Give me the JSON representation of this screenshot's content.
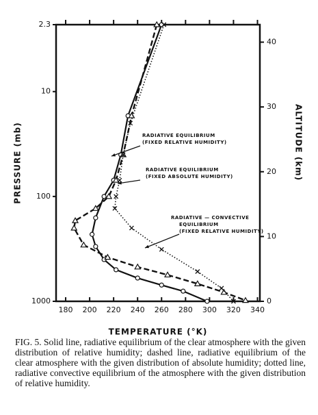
{
  "chart_data": {
    "type": "line",
    "xlabel": "TEMPERATURE (°K)",
    "ylabel": "PRESSURE (mb)",
    "y2label": "ALTITUDE (km)",
    "xlim": [
      172,
      342
    ],
    "xticks": [
      180,
      200,
      220,
      240,
      260,
      280,
      300,
      320,
      340
    ],
    "ylim": [
      1000,
      2.3
    ],
    "yscale": "log",
    "yticks": [
      2.3,
      10,
      100,
      1000
    ],
    "y2lim": [
      0,
      42.7
    ],
    "y2ticks": [
      0,
      10,
      20,
      30,
      40
    ],
    "series": [
      {
        "line": "solid",
        "marker": "circle",
        "color": "#111",
        "x": [
          260,
          232,
          226,
          220,
          212,
          205,
          202,
          205,
          212,
          222,
          240,
          260,
          278,
          298
        ],
        "values": [
          2.3,
          17,
          40,
          70,
          100,
          160,
          230,
          300,
          400,
          500,
          600,
          700,
          800,
          1000
        ]
      },
      {
        "line": "dashed",
        "marker": "triangle",
        "color": "#111",
        "x": [
          256,
          235,
          228,
          222,
          216,
          205,
          188,
          187,
          195,
          215,
          240,
          265,
          290,
          312,
          330
        ],
        "values": [
          2.3,
          17,
          40,
          70,
          100,
          130,
          170,
          200,
          290,
          380,
          470,
          560,
          680,
          820,
          980
        ]
      },
      {
        "line": "dotted",
        "marker": "cross",
        "color": "#111",
        "x": [
          262,
          234,
          228,
          225,
          222,
          221,
          235,
          260,
          290,
          310,
          320
        ],
        "values": [
          2.3,
          20,
          40,
          70,
          100,
          130,
          200,
          320,
          520,
          750,
          1000
        ]
      }
    ],
    "annotations": [
      {
        "lines": [
          "RADIATIVE EQUILIBRIUM",
          "(FIXED RELATIVE HUMIDITY)"
        ]
      },
      {
        "lines": [
          "RADIATIVE EQUILIBRIUM",
          "(FIXED ABSOLUTE HUMIDITY)"
        ]
      },
      {
        "lines": [
          "RADIATIVE — CONVECTIVE",
          "EQUILIBRIUM",
          "(FIXED RELATIVE HUMIDITY)"
        ]
      }
    ],
    "caption": "FIG. 5. Solid line, radiative equilibrium of the clear atmosphere with the given distribution of relative humidity; dashed line, radiative equilibrium of the clear atmosphere with the given distribution of absolute humidity; dotted line, radiative convective equilibrium of the atmosphere with the given distribution of relative humidity."
  }
}
